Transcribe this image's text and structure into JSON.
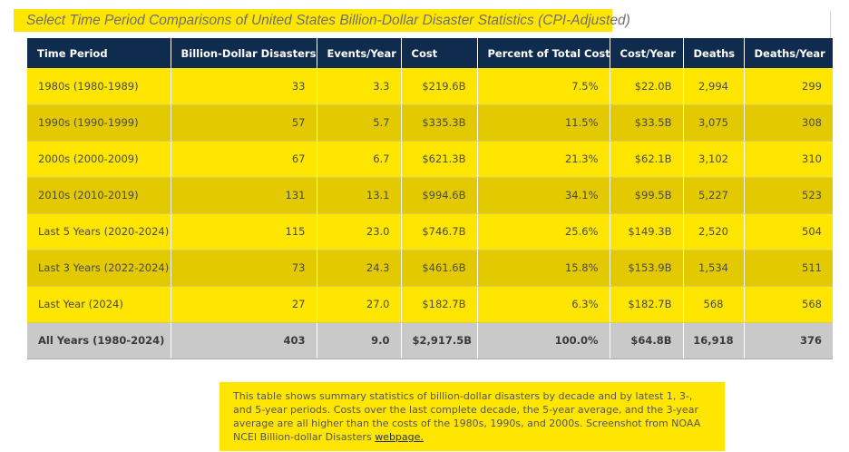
{
  "title": "Select Time Period Comparisons of United States Billion-Dollar Disaster Statistics (CPI-Adjusted)",
  "table": {
    "headers": [
      "Time Period",
      "Billion-Dollar Disasters",
      "Events/Year",
      "Cost",
      "Percent of Total Cost",
      "Cost/Year",
      "Deaths",
      "Deaths/Year"
    ],
    "rows": [
      [
        "1980s (1980-1989)",
        "33",
        "3.3",
        "$219.6B",
        "7.5%",
        "$22.0B",
        "2,994",
        "299"
      ],
      [
        "1990s (1990-1999)",
        "57",
        "5.7",
        "$335.3B",
        "11.5%",
        "$33.5B",
        "3,075",
        "308"
      ],
      [
        "2000s (2000-2009)",
        "67",
        "6.7",
        "$621.3B",
        "21.3%",
        "$62.1B",
        "3,102",
        "310"
      ],
      [
        "2010s (2010-2019)",
        "131",
        "13.1",
        "$994.6B",
        "34.1%",
        "$99.5B",
        "5,227",
        "523"
      ],
      [
        "Last 5 Years (2020-2024)",
        "115",
        "23.0",
        "$746.7B",
        "25.6%",
        "$149.3B",
        "2,520",
        "504"
      ],
      [
        "Last 3 Years (2022-2024)",
        "73",
        "24.3",
        "$461.6B",
        "15.8%",
        "$153.9B",
        "1,534",
        "511"
      ],
      [
        "Last Year (2024)",
        "27",
        "27.0",
        "$182.7B",
        "6.3%",
        "$182.7B",
        "568",
        "568"
      ]
    ],
    "total": [
      "All Years (1980-2024)",
      "403",
      "9.0",
      "$2,917.5B",
      "100.0%",
      "$64.8B",
      "16,918",
      "376"
    ]
  },
  "note": {
    "text": "This table shows summary statistics of billion-dollar disasters by decade and by latest 1, 3-, and 5-year periods. Costs over the last complete decade, the 5-year average, and the 3-year average are all higher than the costs of the 1980s, 1990s, and 2000s. Screenshot from NOAA NCEI Billion-dollar Disasters ",
    "link_text": "webpage."
  },
  "colors": {
    "header_bg": "#0f2b4d",
    "row_yellow": "#ffe600",
    "row_gold": "#e3c900",
    "total_gray": "#c9c9c9"
  }
}
